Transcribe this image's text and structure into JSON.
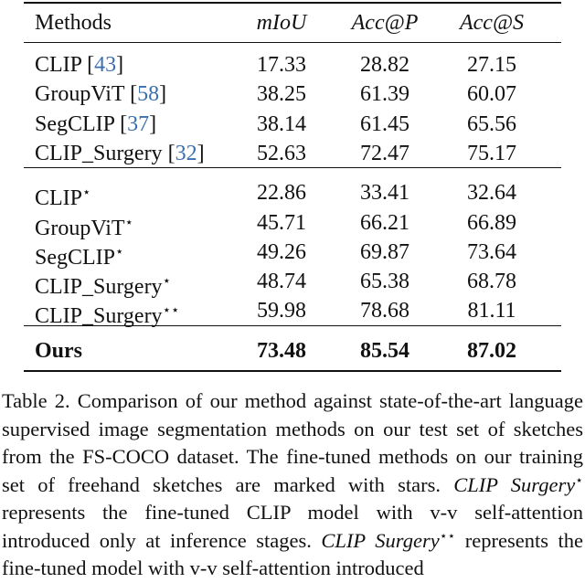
{
  "table": {
    "header": [
      "Methods",
      "mIoU",
      "Acc@P",
      "Acc@S"
    ],
    "groups": [
      {
        "rows": [
          {
            "method": "CLIP",
            "ref": "43",
            "values": [
              "17.33",
              "28.82",
              "27.15"
            ]
          },
          {
            "method": "GroupViT",
            "ref": "58",
            "values": [
              "38.25",
              "61.39",
              "60.07"
            ]
          },
          {
            "method": "SegCLIP",
            "ref": "37",
            "values": [
              "38.14",
              "61.45",
              "65.56"
            ]
          },
          {
            "method": "CLIP_Surgery",
            "ref": "32",
            "values": [
              "52.63",
              "72.47",
              "75.17"
            ]
          }
        ]
      },
      {
        "rows": [
          {
            "method": "CLIP",
            "star": "⋆",
            "values": [
              "22.86",
              "33.41",
              "32.64"
            ]
          },
          {
            "method": "GroupViT",
            "star": "⋆",
            "values": [
              "45.71",
              "66.21",
              "66.89"
            ]
          },
          {
            "method": "SegCLIP",
            "star": "⋆",
            "values": [
              "49.26",
              "69.87",
              "73.64"
            ]
          },
          {
            "method": "CLIP_Surgery",
            "star": "⋆",
            "values": [
              "48.74",
              "65.38",
              "68.78"
            ]
          },
          {
            "method": "CLIP_Surgery",
            "star": "⋆⋆",
            "values": [
              "59.98",
              "78.68",
              "81.11"
            ]
          }
        ]
      },
      {
        "rows": [
          {
            "method": "Ours",
            "bold": true,
            "values": [
              "73.48",
              "85.54",
              "87.02"
            ]
          }
        ]
      }
    ]
  },
  "caption": {
    "label": "Table 2.",
    "segments": [
      {
        "text": " Comparison of our method against state-of-the-art language supervised image segmentation methods on our test set of sketches from the FS-COCO dataset. The fine-tuned methods on our training set of freehand sketches are marked with stars. "
      },
      {
        "text": "CLIP Surgery",
        "italic": true
      },
      {
        "text": "⋆",
        "sup": true
      },
      {
        "text": " represents the fine-tuned CLIP model with v-v self-attention introduced only at inference stages. "
      },
      {
        "text": "CLIP Surgery",
        "italic": true
      },
      {
        "text": "⋆⋆",
        "sup": true
      },
      {
        "text": " represents the fine-tuned model with v-v self-attention introduced"
      }
    ]
  }
}
